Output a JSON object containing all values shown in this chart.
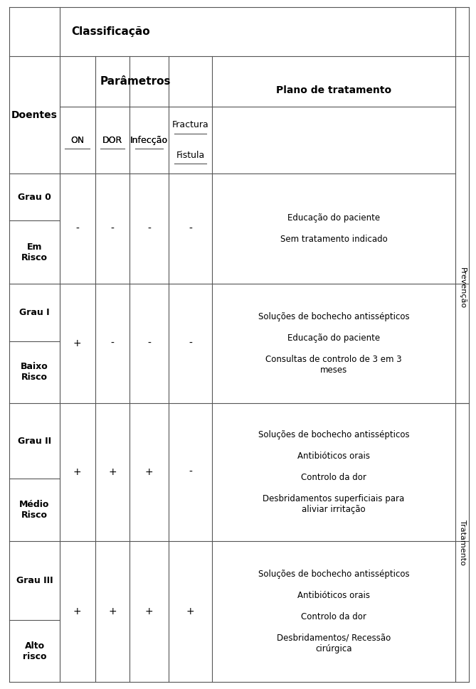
{
  "col_classificacao": "Classificação",
  "col_parametros": "Parâmetros",
  "col_doentes": "Doentes",
  "col_plano": "Plano de tratamento",
  "param_headers": [
    "ON",
    "DOR",
    "Infecção",
    "Fractura\nFistula"
  ],
  "rows": [
    {
      "grade": "Grau 0",
      "subgrade": "Em\nRisco",
      "on": "-",
      "dor": "-",
      "infeccao": "-",
      "fractura": "-",
      "tratamento": "Educação do paciente\n\nSem tratamento indicado"
    },
    {
      "grade": "Grau I",
      "subgrade": "Baixo\nRisco",
      "on": "+",
      "dor": "-",
      "infeccao": "-",
      "fractura": "-",
      "tratamento": "Soluções de bochecho antissépticos\n\nEducação do paciente\n\nConsultas de controlo de 3 em 3\nmeses"
    },
    {
      "grade": "Grau II",
      "subgrade": "Médio\nRisco",
      "on": "+",
      "dor": "+",
      "infeccao": "+",
      "fractura": "-",
      "tratamento": "Soluções de bochecho antissépticos\n\nAntibióticos orais\n\nControlo da dor\n\nDesbridamentos superficiais para\naliviar irritação"
    },
    {
      "grade": "Grau III",
      "subgrade": "Alto\nrisco",
      "on": "+",
      "dor": "+",
      "infeccao": "+",
      "fractura": "+",
      "tratamento": "Soluções de bochecho antissépticos\n\nAntibióticos orais\n\nControlo da dor\n\nDesbridamentos/ Recessão\ncirúrgica"
    }
  ],
  "sidebar_labels": [
    "Prevenção",
    "Tratamento"
  ],
  "line_color": "#555555",
  "bg_color": "#ffffff",
  "text_color": "#000000"
}
